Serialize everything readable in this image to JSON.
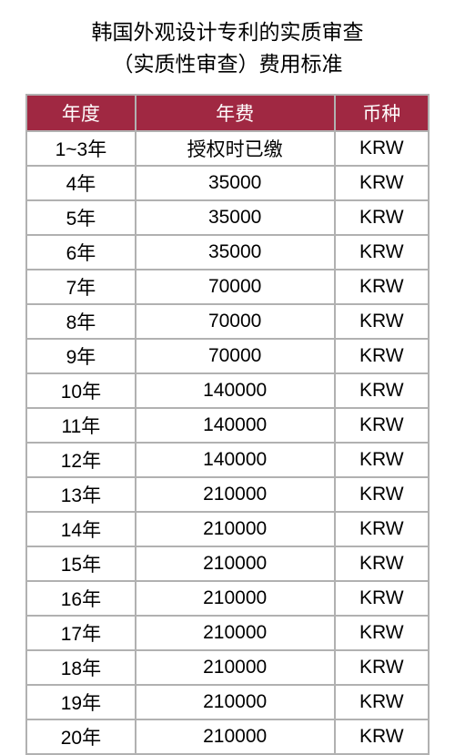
{
  "title_line1": "韩国外观设计专利的实质审查",
  "title_line2": "（实质性审查）费用标准",
  "table": {
    "columns": [
      "年度",
      "年费",
      "币种"
    ],
    "rows": [
      [
        "1~3年",
        "授权时已缴",
        "KRW"
      ],
      [
        "4年",
        "35000",
        "KRW"
      ],
      [
        "5年",
        "35000",
        "KRW"
      ],
      [
        "6年",
        "35000",
        "KRW"
      ],
      [
        "7年",
        "70000",
        "KRW"
      ],
      [
        "8年",
        "70000",
        "KRW"
      ],
      [
        "9年",
        "70000",
        "KRW"
      ],
      [
        "10年",
        "140000",
        "KRW"
      ],
      [
        "11年",
        "140000",
        "KRW"
      ],
      [
        "12年",
        "140000",
        "KRW"
      ],
      [
        "13年",
        "210000",
        "KRW"
      ],
      [
        "14年",
        "210000",
        "KRW"
      ],
      [
        "15年",
        "210000",
        "KRW"
      ],
      [
        "16年",
        "210000",
        "KRW"
      ],
      [
        "17年",
        "210000",
        "KRW"
      ],
      [
        "18年",
        "210000",
        "KRW"
      ],
      [
        "19年",
        "210000",
        "KRW"
      ],
      [
        "20年",
        "210000",
        "KRW"
      ]
    ],
    "header_bg": "#a02842",
    "header_color": "#ffffff",
    "border_color": "#b1b1b1",
    "cell_bg": "#ffffff",
    "cell_color": "#000000",
    "font_size": 21
  }
}
